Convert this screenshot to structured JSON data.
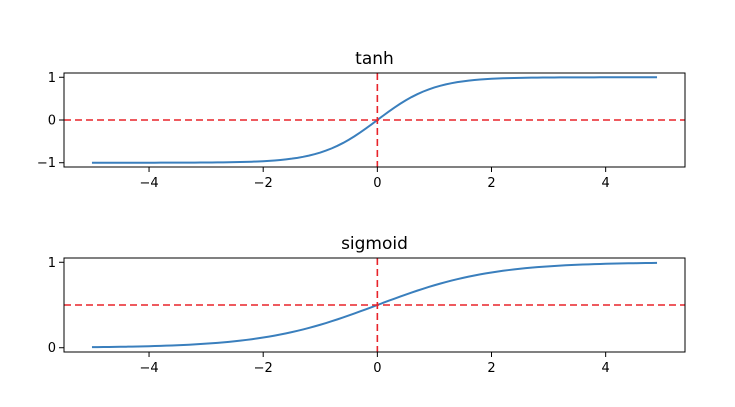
{
  "chart_data": [
    {
      "type": "line",
      "title": "tanh",
      "xlabel": "",
      "ylabel": "",
      "xlim": [
        -5.49,
        5.39
      ],
      "ylim": [
        -1.1,
        1.1
      ],
      "xticks": [
        -4,
        -2,
        0,
        2,
        4
      ],
      "xtick_labels": [
        "−4",
        "−2",
        "0",
        "2",
        "4"
      ],
      "yticks": [
        -1,
        0,
        1
      ],
      "ytick_labels": [
        "−1",
        "0",
        "1"
      ],
      "grid": false,
      "function": "tanh",
      "x_range": [
        -5.0,
        4.9
      ],
      "x_step": 0.1,
      "reference_lines": [
        {
          "orientation": "horizontal",
          "value": 0
        },
        {
          "orientation": "vertical",
          "value": 0
        }
      ],
      "line_color": "#3a7fbd",
      "reference_color": "#e8232a"
    },
    {
      "type": "line",
      "title": "sigmoid",
      "xlabel": "",
      "ylabel": "",
      "xlim": [
        -5.49,
        5.39
      ],
      "ylim": [
        -0.05,
        1.05
      ],
      "xticks": [
        -4,
        -2,
        0,
        2,
        4
      ],
      "xtick_labels": [
        "−4",
        "−2",
        "0",
        "2",
        "4"
      ],
      "yticks": [
        0,
        1
      ],
      "ytick_labels": [
        "0",
        "1"
      ],
      "grid": false,
      "function": "sigmoid",
      "x_range": [
        -5.0,
        4.9
      ],
      "x_step": 0.1,
      "reference_lines": [
        {
          "orientation": "horizontal",
          "value": 0.5
        },
        {
          "orientation": "vertical",
          "value": 0
        }
      ],
      "line_color": "#3a7fbd",
      "reference_color": "#e8232a"
    }
  ]
}
